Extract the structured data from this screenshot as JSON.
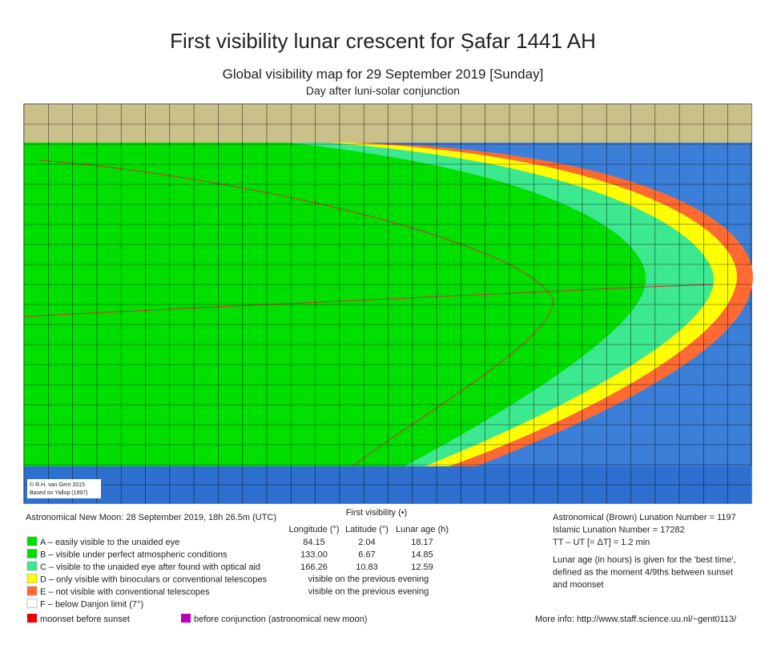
{
  "header": {
    "title": "First visibility lunar crescent for Ṣafar 1441 AH",
    "subtitle": "Global visibility map for 29 September 2019 [Sunday]",
    "note": "Day after luni-solar conjunction"
  },
  "map": {
    "credit": [
      "© R.H. van Gent 2015",
      "Based on Yallop (1997)"
    ]
  },
  "new_moon": "Astronomical New Moon: 28 September 2019, 18h 26.5m (UTC)",
  "legend": {
    "items": [
      {
        "label": "A – easily visible to the unaided eye",
        "color": "#00e000"
      },
      {
        "label": "B – visible under perfect atmospheric conditions",
        "color": "#00e000"
      },
      {
        "label": "C – visible to the unaided eye after found with optical aid",
        "color": "#3ce890"
      },
      {
        "label": "D – only visible with binoculars or conventional telescopes",
        "color": "#ffff00"
      },
      {
        "label": "E – not visible with conventional telescopes",
        "color": "#ff6a33"
      },
      {
        "label": "F – below Danjon limit (7°)",
        "color": "#ffffff"
      }
    ],
    "extra": [
      {
        "label": "moonset before sunset",
        "color": "#ee0000"
      },
      {
        "label": "before conjunction (astronomical new moon)",
        "color": "#bb00bb"
      }
    ]
  },
  "table": {
    "title": "First visibility (•)",
    "headers": [
      "Longitude (°)",
      "Latitude (°)",
      "Lunar age (h)"
    ],
    "rows": [
      [
        "84.15",
        "2.04",
        "18.17"
      ],
      [
        "133.00",
        "6.67",
        "14.85"
      ],
      [
        "166.26",
        "10.83",
        "12.59"
      ]
    ],
    "notes": [
      "visible on the previous evening",
      "visible on the previous evening"
    ]
  },
  "info": {
    "lines": [
      "Astronomical (Brown) Lunation Number = 1197",
      "Islamic Lunation Number = 17282",
      "TT – UT [= ΔT] = 1.2 min"
    ],
    "lunar_age": [
      "Lunar age (in hours) is given for the 'best time',",
      "defined as the moment 4/9ths between sunset",
      "and moonset"
    ],
    "more": "More info: http://www.staff.science.uu.nl/~gent0113/"
  }
}
